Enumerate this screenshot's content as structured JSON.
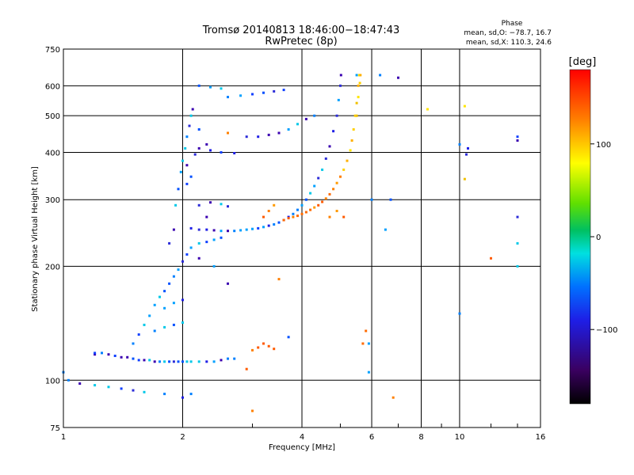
{
  "chart_data": {
    "type": "scatter",
    "title": "Tromsø 20140813 18:46:00−18:47:43",
    "subtitle": "RwPretec (8p)",
    "xlabel": "Frequency [MHz]",
    "ylabel": "Stationary phase Virtual Height [km]",
    "x_scale": "log",
    "y_scale": "log",
    "xlim": [
      1,
      16
    ],
    "ylim": [
      75,
      750
    ],
    "x_ticks": [
      1,
      2,
      4,
      6,
      8,
      10,
      16
    ],
    "x_tick_labels": [
      "1",
      "2",
      "4",
      "6",
      "8",
      "10",
      "16"
    ],
    "y_ticks": [
      75,
      100,
      200,
      300,
      400,
      500,
      600,
      750
    ],
    "y_tick_labels": [
      "75",
      "100",
      "200",
      "300",
      "400",
      "500",
      "600",
      "750"
    ],
    "grid": true,
    "info": {
      "heading": "Phase",
      "line1": "mean, sd,O: −78.7, 16.7",
      "line2": "mean, sd,X: 110.3, 24.6"
    },
    "colorbar": {
      "label": "[deg]",
      "range": [
        -180,
        180
      ],
      "ticks": [
        100,
        0,
        -100
      ],
      "tick_labels": [
        "100",
        "0",
        "−100"
      ]
    },
    "series": [
      {
        "mode": "O",
        "points": [
          [
            1.2,
            117
          ],
          [
            1.25,
            118
          ],
          [
            1.3,
            117
          ],
          [
            1.35,
            116
          ],
          [
            1.4,
            115
          ],
          [
            1.45,
            115
          ],
          [
            1.5,
            114
          ],
          [
            1.55,
            113
          ],
          [
            1.6,
            113
          ],
          [
            1.65,
            113
          ],
          [
            1.7,
            112
          ],
          [
            1.75,
            112
          ],
          [
            1.8,
            112
          ],
          [
            1.85,
            112
          ],
          [
            1.9,
            112
          ],
          [
            1.95,
            112
          ],
          [
            2.0,
            112
          ],
          [
            2.05,
            112
          ],
          [
            2.1,
            112
          ],
          [
            2.2,
            112
          ],
          [
            2.3,
            112
          ],
          [
            2.4,
            112
          ],
          [
            2.5,
            113
          ],
          [
            2.6,
            114
          ],
          [
            2.7,
            114
          ],
          [
            1.5,
            125
          ],
          [
            1.55,
            132
          ],
          [
            1.6,
            140
          ],
          [
            1.65,
            148
          ],
          [
            1.7,
            158
          ],
          [
            1.75,
            166
          ],
          [
            1.8,
            172
          ],
          [
            1.85,
            180
          ],
          [
            1.9,
            188
          ],
          [
            1.95,
            196
          ],
          [
            2.0,
            206
          ],
          [
            2.05,
            215
          ],
          [
            2.1,
            224
          ],
          [
            1.92,
            290
          ],
          [
            1.95,
            320
          ],
          [
            1.98,
            355
          ],
          [
            2.0,
            380
          ],
          [
            2.03,
            410
          ],
          [
            2.05,
            440
          ],
          [
            2.08,
            470
          ],
          [
            2.1,
            500
          ],
          [
            2.12,
            520
          ],
          [
            2.1,
            252
          ],
          [
            2.2,
            250
          ],
          [
            2.3,
            250
          ],
          [
            2.4,
            249
          ],
          [
            2.5,
            248
          ],
          [
            2.6,
            248
          ],
          [
            2.7,
            248
          ],
          [
            2.8,
            249
          ],
          [
            2.9,
            250
          ],
          [
            3.0,
            251
          ],
          [
            3.1,
            252
          ],
          [
            3.2,
            254
          ],
          [
            3.3,
            256
          ],
          [
            3.4,
            258
          ],
          [
            3.5,
            261
          ],
          [
            3.6,
            265
          ],
          [
            3.7,
            270
          ],
          [
            3.8,
            275
          ],
          [
            3.9,
            282
          ],
          [
            4.0,
            290
          ],
          [
            4.1,
            300
          ],
          [
            4.2,
            312
          ],
          [
            4.3,
            326
          ],
          [
            4.4,
            342
          ],
          [
            4.5,
            360
          ],
          [
            4.6,
            385
          ],
          [
            4.7,
            415
          ],
          [
            4.8,
            455
          ],
          [
            4.9,
            500
          ],
          [
            4.95,
            550
          ],
          [
            5.0,
            600
          ],
          [
            5.02,
            640
          ],
          [
            2.6,
            560
          ],
          [
            2.8,
            565
          ],
          [
            3.0,
            570
          ],
          [
            3.2,
            575
          ],
          [
            3.4,
            580
          ],
          [
            3.6,
            585
          ],
          [
            2.9,
            440
          ],
          [
            3.1,
            440
          ],
          [
            3.3,
            445
          ],
          [
            3.5,
            450
          ],
          [
            3.7,
            460
          ],
          [
            3.9,
            475
          ],
          [
            4.1,
            490
          ],
          [
            4.3,
            500
          ],
          [
            2.2,
            230
          ],
          [
            2.3,
            232
          ],
          [
            2.4,
            235
          ],
          [
            2.5,
            238
          ],
          [
            2.2,
            290
          ],
          [
            2.35,
            295
          ],
          [
            2.5,
            292
          ],
          [
            2.6,
            288
          ],
          [
            2.2,
            410
          ],
          [
            2.35,
            405
          ],
          [
            2.5,
            400
          ],
          [
            2.7,
            398
          ],
          [
            2.2,
            600
          ],
          [
            2.35,
            595
          ],
          [
            2.5,
            590
          ],
          [
            1.7,
            135
          ],
          [
            1.8,
            138
          ],
          [
            1.9,
            140
          ],
          [
            2.0,
            142
          ],
          [
            1.8,
            155
          ],
          [
            1.9,
            160
          ],
          [
            2.0,
            163
          ],
          [
            1.03,
            100
          ],
          [
            1.1,
            98
          ],
          [
            1.2,
            97
          ],
          [
            1.3,
            96
          ],
          [
            1.4,
            95
          ],
          [
            1.5,
            94
          ],
          [
            1.6,
            93
          ],
          [
            1.8,
            92
          ],
          [
            2.0,
            90
          ],
          [
            2.1,
            92
          ],
          [
            1.85,
            230
          ],
          [
            1.9,
            250
          ],
          [
            2.3,
            270
          ],
          [
            2.6,
            180
          ],
          [
            2.4,
            200
          ],
          [
            2.2,
            210
          ],
          [
            2.05,
            330
          ],
          [
            2.05,
            370
          ],
          [
            2.1,
            345
          ],
          [
            2.15,
            395
          ],
          [
            2.2,
            460
          ],
          [
            2.3,
            420
          ],
          [
            5.5,
            640
          ],
          [
            6.3,
            640
          ],
          [
            7.0,
            630
          ],
          [
            6.0,
            300
          ],
          [
            6.5,
            250
          ],
          [
            6.7,
            300
          ],
          [
            10.0,
            420
          ],
          [
            10.5,
            410
          ],
          [
            10.4,
            395
          ],
          [
            14.0,
            440
          ],
          [
            14.0,
            430
          ],
          [
            14.0,
            270
          ],
          [
            14.0,
            230
          ],
          [
            14.0,
            200
          ],
          [
            10.0,
            150
          ],
          [
            5.9,
            125
          ],
          [
            5.9,
            105
          ],
          [
            3.7,
            130
          ],
          [
            1.2,
            118
          ],
          [
            1.0,
            105
          ]
        ]
      },
      {
        "mode": "X",
        "points": [
          [
            3.6,
            265
          ],
          [
            3.7,
            268
          ],
          [
            3.8,
            270
          ],
          [
            3.9,
            272
          ],
          [
            4.0,
            275
          ],
          [
            4.1,
            278
          ],
          [
            4.2,
            282
          ],
          [
            4.3,
            286
          ],
          [
            4.4,
            290
          ],
          [
            4.5,
            296
          ],
          [
            4.6,
            302
          ],
          [
            4.7,
            310
          ],
          [
            4.8,
            320
          ],
          [
            4.9,
            332
          ],
          [
            5.0,
            345
          ],
          [
            5.1,
            360
          ],
          [
            5.2,
            380
          ],
          [
            5.3,
            405
          ],
          [
            5.35,
            430
          ],
          [
            5.4,
            460
          ],
          [
            5.45,
            500
          ],
          [
            5.5,
            540
          ],
          [
            5.55,
            600
          ],
          [
            5.58,
            640
          ],
          [
            3.2,
            270
          ],
          [
            3.3,
            280
          ],
          [
            3.4,
            290
          ],
          [
            3.0,
            120
          ],
          [
            3.1,
            122
          ],
          [
            3.2,
            125
          ],
          [
            3.3,
            123
          ],
          [
            3.4,
            121
          ],
          [
            5.5,
            500
          ],
          [
            5.55,
            560
          ],
          [
            5.6,
            610
          ],
          [
            5.62,
            640
          ],
          [
            5.7,
            125
          ],
          [
            5.8,
            135
          ],
          [
            6.8,
            90
          ],
          [
            8.3,
            520
          ],
          [
            10.3,
            530
          ],
          [
            10.3,
            340
          ],
          [
            12.0,
            210
          ],
          [
            2.9,
            107
          ],
          [
            3.0,
            83
          ],
          [
            3.5,
            185
          ],
          [
            2.6,
            450
          ],
          [
            5.1,
            270
          ],
          [
            4.7,
            270
          ],
          [
            4.9,
            280
          ]
        ]
      }
    ]
  }
}
